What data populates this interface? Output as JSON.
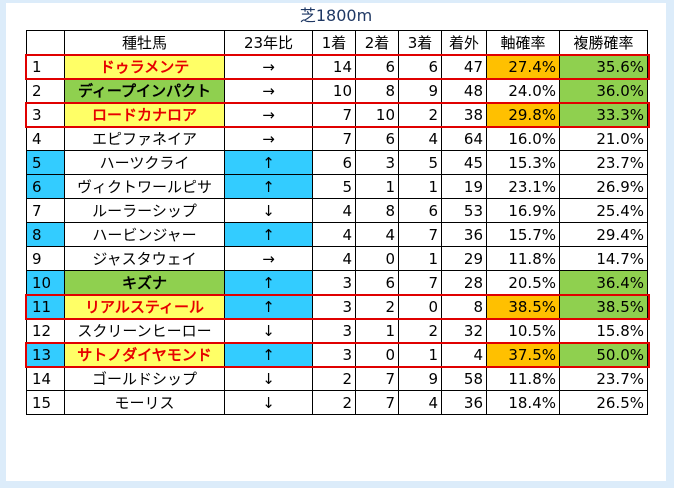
{
  "title": "芝1800m",
  "headers": [
    "",
    "種牡馬",
    "23年比",
    "1着",
    "2着",
    "3着",
    "着外",
    "軸確率",
    "複勝確率"
  ],
  "rows": [
    {
      "rank": "1",
      "name": "ドゥラメンテ",
      "trend": "→",
      "w1": "14",
      "w2": "6",
      "w3": "6",
      "out": "47",
      "axis": "27.4%",
      "place": "35.6%"
    },
    {
      "rank": "2",
      "name": "ディープインパクト",
      "trend": "→",
      "w1": "10",
      "w2": "8",
      "w3": "9",
      "out": "48",
      "axis": "24.0%",
      "place": "36.0%"
    },
    {
      "rank": "3",
      "name": "ロードカナロア",
      "trend": "→",
      "w1": "7",
      "w2": "10",
      "w3": "2",
      "out": "38",
      "axis": "29.8%",
      "place": "33.3%"
    },
    {
      "rank": "4",
      "name": "エピファネイア",
      "trend": "→",
      "w1": "7",
      "w2": "6",
      "w3": "4",
      "out": "64",
      "axis": "16.0%",
      "place": "21.0%"
    },
    {
      "rank": "5",
      "name": "ハーツクライ",
      "trend": "↑",
      "w1": "6",
      "w2": "3",
      "w3": "5",
      "out": "45",
      "axis": "15.3%",
      "place": "23.7%"
    },
    {
      "rank": "6",
      "name": "ヴィクトワールピサ",
      "trend": "↑",
      "w1": "5",
      "w2": "1",
      "w3": "1",
      "out": "19",
      "axis": "23.1%",
      "place": "26.9%"
    },
    {
      "rank": "7",
      "name": "ルーラーシップ",
      "trend": "↓",
      "w1": "4",
      "w2": "8",
      "w3": "6",
      "out": "53",
      "axis": "16.9%",
      "place": "25.4%"
    },
    {
      "rank": "8",
      "name": "ハービンジャー",
      "trend": "↑",
      "w1": "4",
      "w2": "4",
      "w3": "7",
      "out": "36",
      "axis": "15.7%",
      "place": "29.4%"
    },
    {
      "rank": "9",
      "name": "ジャスタウェイ",
      "trend": "→",
      "w1": "4",
      "w2": "0",
      "w3": "1",
      "out": "29",
      "axis": "11.8%",
      "place": "14.7%"
    },
    {
      "rank": "10",
      "name": "キズナ",
      "trend": "↑",
      "w1": "3",
      "w2": "6",
      "w3": "7",
      "out": "28",
      "axis": "20.5%",
      "place": "36.4%"
    },
    {
      "rank": "11",
      "name": "リアルスティール",
      "trend": "↑",
      "w1": "3",
      "w2": "2",
      "w3": "0",
      "out": "8",
      "axis": "38.5%",
      "place": "38.5%"
    },
    {
      "rank": "12",
      "name": "スクリーンヒーロー",
      "trend": "↓",
      "w1": "3",
      "w2": "1",
      "w3": "2",
      "out": "32",
      "axis": "10.5%",
      "place": "15.8%"
    },
    {
      "rank": "13",
      "name": "サトノダイヤモンド",
      "trend": "↑",
      "w1": "3",
      "w2": "0",
      "w3": "1",
      "out": "4",
      "axis": "37.5%",
      "place": "50.0%"
    },
    {
      "rank": "14",
      "name": "ゴールドシップ",
      "trend": "↓",
      "w1": "2",
      "w2": "7",
      "w3": "9",
      "out": "58",
      "axis": "11.8%",
      "place": "23.7%"
    },
    {
      "rank": "15",
      "name": "モーリス",
      "trend": "↓",
      "w1": "2",
      "w2": "7",
      "w3": "4",
      "out": "36",
      "axis": "18.4%",
      "place": "26.5%"
    }
  ],
  "colors": {
    "highlight_yellow": "#ffff66",
    "highlight_green": "#8fd04f",
    "highlight_cyan": "#33ccff",
    "highlight_orange": "#ffc000",
    "emphasis_red": "#e60000"
  }
}
